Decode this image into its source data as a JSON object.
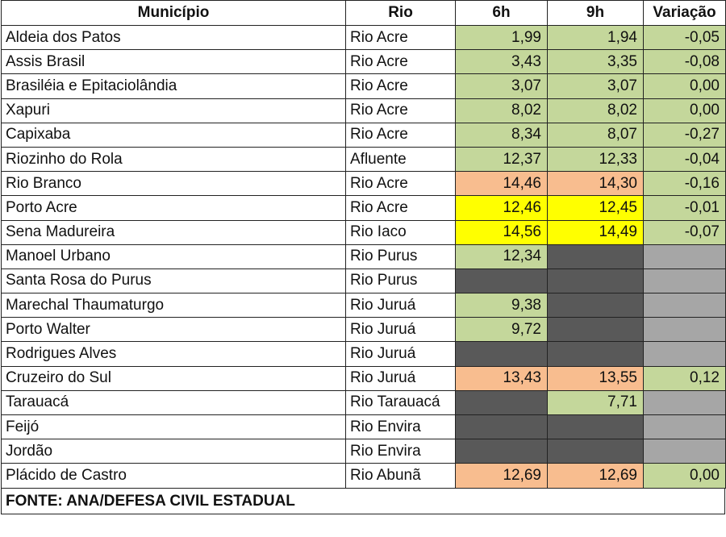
{
  "colors": {
    "green": "#c4d79b",
    "orange": "#f8bd8f",
    "yellow": "#ffff00",
    "dark": "#595959",
    "grey": "#a6a6a6"
  },
  "headers": [
    "Município",
    "Rio",
    "6h",
    "9h",
    "Variação"
  ],
  "rows": [
    {
      "municipio": "Aldeia dos Patos",
      "rio": "Rio Acre",
      "h6": "1,99",
      "h9": "1,94",
      "var": "-0,05",
      "c6": "green",
      "c9": "green",
      "cv": "green"
    },
    {
      "municipio": "Assis Brasil",
      "rio": "Rio Acre",
      "h6": "3,43",
      "h9": "3,35",
      "var": "-0,08",
      "c6": "green",
      "c9": "green",
      "cv": "green"
    },
    {
      "municipio": "Brasiléia e Epitaciolândia",
      "rio": "Rio Acre",
      "h6": "3,07",
      "h9": "3,07",
      "var": "0,00",
      "c6": "green",
      "c9": "green",
      "cv": "green"
    },
    {
      "municipio": "Xapuri",
      "rio": "Rio Acre",
      "h6": "8,02",
      "h9": "8,02",
      "var": "0,00",
      "c6": "green",
      "c9": "green",
      "cv": "green"
    },
    {
      "municipio": "Capixaba",
      "rio": "Rio Acre",
      "h6": "8,34",
      "h9": "8,07",
      "var": "-0,27",
      "c6": "green",
      "c9": "green",
      "cv": "green"
    },
    {
      "municipio": "Riozinho do Rola",
      "rio": "Afluente",
      "h6": "12,37",
      "h9": "12,33",
      "var": "-0,04",
      "c6": "green",
      "c9": "green",
      "cv": "green"
    },
    {
      "municipio": "Rio Branco",
      "rio": "Rio Acre",
      "h6": "14,46",
      "h9": "14,30",
      "var": "-0,16",
      "c6": "orange",
      "c9": "orange",
      "cv": "green"
    },
    {
      "municipio": "Porto Acre",
      "rio": "Rio Acre",
      "h6": "12,46",
      "h9": "12,45",
      "var": "-0,01",
      "c6": "yellow",
      "c9": "yellow",
      "cv": "green"
    },
    {
      "municipio": "Sena Madureira",
      "rio": "Rio Iaco",
      "h6": "14,56",
      "h9": "14,49",
      "var": "-0,07",
      "c6": "yellow",
      "c9": "yellow",
      "cv": "green"
    },
    {
      "municipio": "Manoel Urbano",
      "rio": "Rio Purus",
      "h6": "12,34",
      "h9": "",
      "var": "",
      "c6": "green",
      "c9": "dark",
      "cv": "grey"
    },
    {
      "municipio": "Santa Rosa do Purus",
      "rio": "Rio Purus",
      "h6": "",
      "h9": "",
      "var": "",
      "c6": "dark",
      "c9": "dark",
      "cv": "grey"
    },
    {
      "municipio": "Marechal Thaumaturgo",
      "rio": "Rio Juruá",
      "h6": "9,38",
      "h9": "",
      "var": "",
      "c6": "green",
      "c9": "dark",
      "cv": "grey"
    },
    {
      "municipio": "Porto Walter",
      "rio": "Rio Juruá",
      "h6": "9,72",
      "h9": "",
      "var": "",
      "c6": "green",
      "c9": "dark",
      "cv": "grey"
    },
    {
      "municipio": "Rodrigues Alves",
      "rio": "Rio Juruá",
      "h6": "",
      "h9": "",
      "var": "",
      "c6": "dark",
      "c9": "dark",
      "cv": "grey"
    },
    {
      "municipio": "Cruzeiro do Sul",
      "rio": "Rio Juruá",
      "h6": "13,43",
      "h9": "13,55",
      "var": "0,12",
      "c6": "orange",
      "c9": "orange",
      "cv": "green"
    },
    {
      "municipio": "Tarauacá",
      "rio": "Rio Tarauacá",
      "h6": "",
      "h9": "7,71",
      "var": "",
      "c6": "dark",
      "c9": "green",
      "cv": "grey"
    },
    {
      "municipio": "Feijó",
      "rio": "Rio Envira",
      "h6": "",
      "h9": "",
      "var": "",
      "c6": "dark",
      "c9": "dark",
      "cv": "grey"
    },
    {
      "municipio": "Jordão",
      "rio": "Rio Envira",
      "h6": "",
      "h9": "",
      "var": "",
      "c6": "dark",
      "c9": "dark",
      "cv": "grey"
    },
    {
      "municipio": "Plácido de Castro",
      "rio": "Rio Abunã",
      "h6": "12,69",
      "h9": "12,69",
      "var": "0,00",
      "c6": "orange",
      "c9": "orange",
      "cv": "green"
    }
  ],
  "footer": "FONTE: ANA/DEFESA CIVIL ESTADUAL"
}
